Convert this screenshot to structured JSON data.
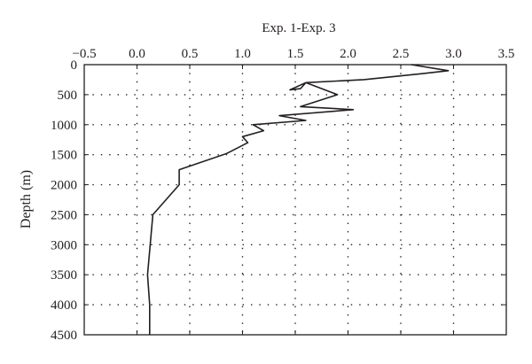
{
  "chart_data": {
    "type": "line",
    "title": "Exp. 1-Exp. 3",
    "xlabel": "Exp. 1-Exp. 3",
    "ylabel": "Depth (m)",
    "x_axis_position": "top",
    "y_axis_inverted": true,
    "xlim": [
      -0.5,
      3.5
    ],
    "ylim": [
      0,
      4500
    ],
    "xticks": [
      -0.5,
      0.0,
      0.5,
      1.0,
      1.5,
      2.0,
      2.5,
      3.0,
      3.5
    ],
    "xtick_labels": [
      "−0.5",
      "0.0",
      "0.5",
      "1.0",
      "1.5",
      "2.0",
      "2.5",
      "3.0",
      "3.5"
    ],
    "yticks": [
      0,
      500,
      1000,
      1500,
      2000,
      2500,
      3000,
      3500,
      4000,
      4500
    ],
    "ytick_labels": [
      "0",
      "500",
      "1000",
      "1500",
      "2000",
      "2500",
      "3000",
      "3500",
      "4000",
      "4500"
    ],
    "grid": true,
    "grid_style": "dotted",
    "line_color": "#231f20",
    "series": [
      {
        "x": [
          2.6,
          2.95,
          2.7,
          2.15,
          1.6,
          1.55,
          1.45,
          1.6,
          1.9,
          1.55,
          2.05,
          1.35,
          1.6,
          1.1,
          1.2,
          1.0,
          1.05,
          0.85,
          0.4,
          0.4,
          0.15,
          0.1,
          0.12,
          0.12
        ],
        "y": [
          0,
          100,
          150,
          250,
          300,
          400,
          420,
          300,
          500,
          700,
          750,
          850,
          930,
          1000,
          1100,
          1200,
          1300,
          1480,
          1750,
          2000,
          2500,
          3500,
          4000,
          4500
        ]
      }
    ]
  }
}
